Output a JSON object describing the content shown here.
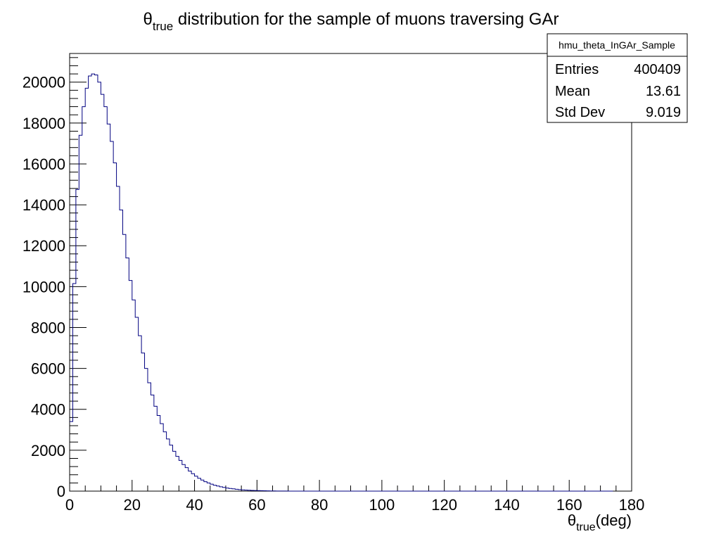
{
  "chart_data": {
    "type": "bar",
    "title": {
      "symbol": "θ",
      "subscript": "true",
      "text": " distribution for the sample of muons traversing GAr"
    },
    "xlabel": {
      "symbol": "θ",
      "subscript": "true",
      "text": "(deg)"
    },
    "ylabel": "",
    "xlim": [
      0,
      180
    ],
    "ylim": [
      0,
      21400
    ],
    "x_ticks": [
      0,
      20,
      40,
      60,
      80,
      100,
      120,
      140,
      160,
      180
    ],
    "y_ticks": [
      0,
      2000,
      4000,
      6000,
      8000,
      10000,
      12000,
      14000,
      16000,
      18000,
      20000
    ],
    "bin_width": 1,
    "bin_start": 0,
    "values": [
      3400,
      10150,
      14750,
      17400,
      18800,
      19700,
      20300,
      20400,
      20350,
      20000,
      19400,
      18800,
      17950,
      17100,
      16050,
      14900,
      13750,
      12550,
      11400,
      10300,
      9350,
      8500,
      7600,
      6750,
      6000,
      5300,
      4700,
      4150,
      3700,
      3300,
      2900,
      2550,
      2250,
      1950,
      1700,
      1500,
      1300,
      1150,
      980,
      850,
      730,
      630,
      540,
      460,
      400,
      340,
      290,
      250,
      210,
      180,
      150,
      130,
      110,
      90,
      75,
      62,
      52,
      43,
      36,
      30,
      25,
      20,
      16,
      13,
      10,
      8,
      6,
      5,
      4,
      3,
      2,
      2,
      1,
      1,
      1,
      0,
      0,
      0,
      0,
      0,
      0,
      0,
      0,
      0,
      0,
      0,
      0,
      0,
      0,
      0,
      0,
      0,
      0,
      0,
      0,
      0,
      0,
      0,
      0,
      0,
      0,
      0,
      0,
      0,
      0,
      0,
      0,
      0,
      0,
      0,
      0,
      0,
      0,
      0,
      0,
      0,
      0,
      0,
      0,
      0,
      0,
      0,
      0,
      0,
      0,
      0,
      0,
      0,
      0,
      0,
      0,
      0,
      0,
      0,
      0,
      0,
      0,
      0,
      0,
      0,
      0,
      0,
      0,
      0,
      0,
      0,
      0,
      0,
      0,
      0,
      0,
      0,
      0,
      0,
      0,
      0,
      0,
      0,
      0,
      0,
      0,
      0,
      0,
      0,
      0,
      0,
      0,
      0,
      0,
      0,
      0,
      0,
      0,
      0
    ],
    "line_color": "#000080",
    "stats_box": {
      "name": "hmu_theta_InGAr_Sample",
      "rows": [
        {
          "label": "Entries",
          "value": "400409"
        },
        {
          "label": "Mean",
          "value": "13.61"
        },
        {
          "label": "Std Dev",
          "value": "9.019"
        }
      ]
    },
    "grid": false,
    "legend": "top-right"
  }
}
